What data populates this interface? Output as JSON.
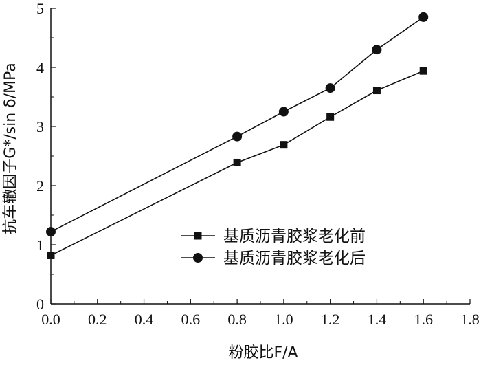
{
  "chart_data": {
    "type": "line",
    "xlabel": "粉胶比F/A",
    "ylabel": "抗车辙因子G*/sin δ/MPa",
    "xlim": [
      0.0,
      1.8
    ],
    "ylim": [
      0,
      5
    ],
    "x_ticks": [
      "0.0",
      "0.2",
      "0.4",
      "0.6",
      "0.8",
      "1.0",
      "1.2",
      "1.4",
      "1.6",
      "1.8"
    ],
    "y_ticks": [
      "0",
      "1",
      "2",
      "3",
      "4",
      "5"
    ],
    "x": [
      0.0,
      0.8,
      1.0,
      1.2,
      1.4,
      1.6
    ],
    "series": [
      {
        "name": "基质沥青胶浆老化前",
        "marker": "square",
        "values": [
          0.82,
          2.39,
          2.69,
          3.16,
          3.61,
          3.94
        ]
      },
      {
        "name": "基质沥青胶浆老化后",
        "marker": "circle",
        "values": [
          1.22,
          2.83,
          3.25,
          3.65,
          4.3,
          4.85
        ]
      }
    ],
    "legend_position": "lower-right",
    "grid": false,
    "color": "#111111"
  }
}
